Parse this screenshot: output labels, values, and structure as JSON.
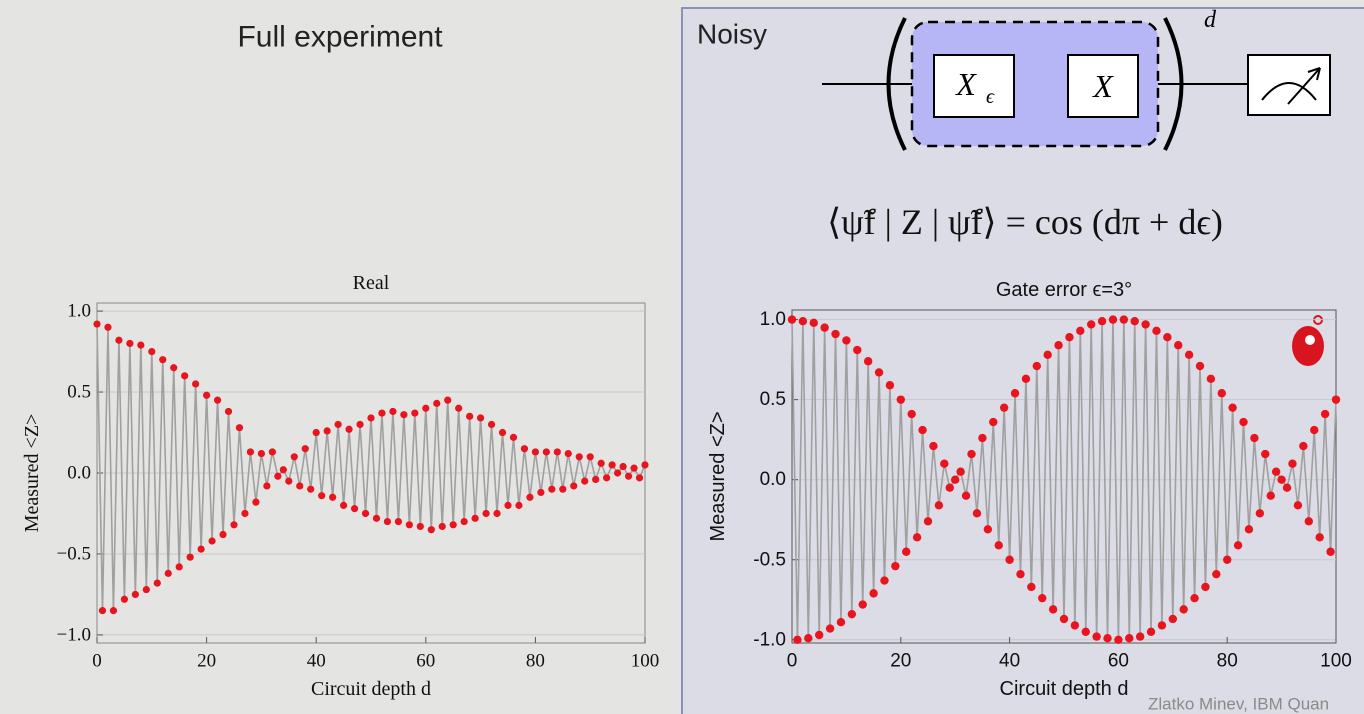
{
  "header": {
    "title": "Full experiment"
  },
  "panel": {
    "title": "Noisy",
    "gates": [
      {
        "label": "X",
        "subscript": "ϵ"
      },
      {
        "label": "X"
      }
    ],
    "exponent": "d",
    "equation": "⟨ψ̃f | Z | ψ̃f⟩ = cos (dπ + dϵ)",
    "credit": "Zlatko Minev, IBM Quan"
  },
  "chart_data": [
    {
      "type": "line",
      "title": "Real",
      "x_label": "Circuit depth d",
      "y_label": "Measured <Z>",
      "color": "#a0a0a0",
      "marker_color": "#e8141e",
      "grid": true,
      "xlim": [
        0,
        100
      ],
      "ylim": [
        -1.05,
        1.05
      ],
      "xticks": [
        0,
        20,
        40,
        60,
        80,
        100
      ],
      "yticks": [
        {
          "value": -1.0,
          "label": "−1.0"
        },
        {
          "value": -0.5,
          "label": "−0.5"
        },
        {
          "value": 0.0,
          "label": "0.0"
        },
        {
          "value": 0.5,
          "label": "0.5"
        },
        {
          "value": 1.0,
          "label": "1.0"
        }
      ],
      "x": [
        0,
        1,
        2,
        3,
        4,
        5,
        6,
        7,
        8,
        9,
        10,
        11,
        12,
        13,
        14,
        15,
        16,
        17,
        18,
        19,
        20,
        21,
        22,
        23,
        24,
        25,
        26,
        27,
        28,
        29,
        30,
        31,
        32,
        33,
        34,
        35,
        36,
        37,
        38,
        39,
        40,
        41,
        42,
        43,
        44,
        45,
        46,
        47,
        48,
        49,
        50,
        51,
        52,
        53,
        54,
        55,
        56,
        57,
        58,
        59,
        60,
        61,
        62,
        63,
        64,
        65,
        66,
        67,
        68,
        69,
        70,
        71,
        72,
        73,
        74,
        75,
        76,
        77,
        78,
        79,
        80,
        81,
        82,
        83,
        84,
        85,
        86,
        87,
        88,
        89,
        90,
        91,
        92,
        93,
        94,
        95,
        96,
        97,
        98,
        99,
        100
      ],
      "values": [
        0.92,
        -0.85,
        0.9,
        -0.85,
        0.82,
        -0.78,
        0.8,
        -0.75,
        0.79,
        -0.72,
        0.75,
        -0.68,
        0.7,
        -0.62,
        0.65,
        -0.58,
        0.6,
        -0.52,
        0.55,
        -0.47,
        0.48,
        -0.42,
        0.45,
        -0.38,
        0.38,
        -0.32,
        0.28,
        -0.25,
        0.13,
        -0.18,
        0.12,
        -0.08,
        0.13,
        -0.02,
        0.02,
        -0.05,
        0.1,
        -0.08,
        0.15,
        -0.1,
        0.25,
        -0.14,
        0.26,
        -0.15,
        0.3,
        -0.2,
        0.27,
        -0.22,
        0.3,
        -0.25,
        0.34,
        -0.28,
        0.37,
        -0.3,
        0.38,
        -0.3,
        0.36,
        -0.32,
        0.37,
        -0.33,
        0.4,
        -0.35,
        0.43,
        -0.33,
        0.45,
        -0.32,
        0.4,
        -0.3,
        0.35,
        -0.28,
        0.34,
        -0.25,
        0.3,
        -0.25,
        0.25,
        -0.2,
        0.22,
        -0.2,
        0.15,
        -0.15,
        0.13,
        -0.12,
        0.13,
        -0.1,
        0.13,
        -0.1,
        0.12,
        -0.08,
        0.1,
        -0.05,
        0.1,
        -0.04,
        0.06,
        -0.03,
        0.05,
        0,
        0.04,
        -0.02,
        0.03,
        -0.03,
        0.05
      ]
    },
    {
      "type": "line",
      "title": "Gate error ϵ=3°",
      "x_label": "Circuit depth d",
      "y_label": "Measured <Z>",
      "color": "#a0a0a0",
      "marker_color": "#e8141e",
      "grid": true,
      "xlim": [
        0,
        100
      ],
      "ylim": [
        -1.02,
        1.06
      ],
      "xticks": [
        0,
        20,
        40,
        60,
        80,
        100
      ],
      "yticks": [
        {
          "value": -1.0,
          "label": "-1.0"
        },
        {
          "value": -0.5,
          "label": "-0.5"
        },
        {
          "value": 0.0,
          "label": "0.0"
        },
        {
          "value": 0.5,
          "label": "0.5"
        },
        {
          "value": 1.0,
          "label": "1.0"
        }
      ],
      "x": [
        0,
        1,
        2,
        3,
        4,
        5,
        6,
        7,
        8,
        9,
        10,
        11,
        12,
        13,
        14,
        15,
        16,
        17,
        18,
        19,
        20,
        21,
        22,
        23,
        24,
        25,
        26,
        27,
        28,
        29,
        30,
        31,
        32,
        33,
        34,
        35,
        36,
        37,
        38,
        39,
        40,
        41,
        42,
        43,
        44,
        45,
        46,
        47,
        48,
        49,
        50,
        51,
        52,
        53,
        54,
        55,
        56,
        57,
        58,
        59,
        60,
        61,
        62,
        63,
        64,
        65,
        66,
        67,
        68,
        69,
        70,
        71,
        72,
        73,
        74,
        75,
        76,
        77,
        78,
        79,
        80,
        81,
        82,
        83,
        84,
        85,
        86,
        87,
        88,
        89,
        90,
        91,
        92,
        93,
        94,
        95,
        96,
        97,
        98,
        99,
        100
      ],
      "values": [
        1,
        -1,
        0.99,
        -0.99,
        0.98,
        -0.97,
        0.95,
        -0.93,
        0.91,
        -0.89,
        0.87,
        -0.84,
        0.81,
        -0.78,
        0.74,
        -0.71,
        0.67,
        -0.63,
        0.59,
        -0.54,
        0.5,
        -0.45,
        0.41,
        -0.36,
        0.31,
        -0.26,
        0.21,
        -0.16,
        0.1,
        -0.05,
        0,
        0.05,
        -0.1,
        0.16,
        -0.21,
        0.26,
        -0.31,
        0.36,
        -0.41,
        0.45,
        -0.5,
        0.54,
        -0.59,
        0.63,
        -0.67,
        0.71,
        -0.74,
        0.78,
        -0.81,
        0.84,
        -0.87,
        0.89,
        -0.91,
        0.93,
        -0.95,
        0.97,
        -0.98,
        0.99,
        -0.99,
        1,
        -1,
        1,
        -0.99,
        0.99,
        -0.98,
        0.97,
        -0.95,
        0.93,
        -0.91,
        0.89,
        -0.87,
        0.84,
        -0.81,
        0.78,
        -0.74,
        0.71,
        -0.67,
        0.63,
        -0.59,
        0.54,
        -0.5,
        0.45,
        -0.41,
        0.36,
        -0.31,
        0.26,
        -0.21,
        0.16,
        -0.1,
        0.05,
        0,
        -0.05,
        0.1,
        -0.16,
        0.21,
        -0.26,
        0.31,
        -0.36,
        0.41,
        -0.45,
        0.5
      ]
    }
  ]
}
